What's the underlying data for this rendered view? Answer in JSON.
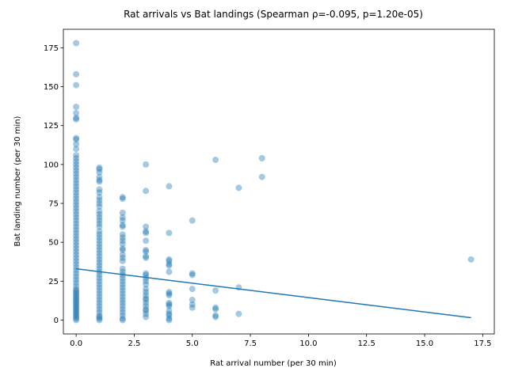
{
  "chart_data": {
    "type": "scatter",
    "title": "Rat arrivals vs Bat landings (Spearman ρ=-0.095, p=1.20e-05)",
    "x_label": "Rat arrival number (per 30 min)",
    "y_label": "Bat landing number (per 30 min)",
    "xlim": [
      -0.55,
      18.0
    ],
    "ylim": [
      -8.9,
      186.9
    ],
    "xticks": [
      {
        "value": 0,
        "label": "0.0"
      },
      2.5,
      {
        "value": 5,
        "label": "5.0"
      },
      7.5,
      {
        "value": 10,
        "label": "10.0"
      },
      12.5,
      {
        "value": 15,
        "label": "15.0"
      },
      17.5
    ],
    "yticks": [
      0,
      25,
      50,
      75,
      100,
      125,
      150,
      175
    ],
    "series": [
      {
        "kind": "scatter",
        "color": "#1f77b4",
        "opacity": 0.4,
        "x": [
          0,
          0,
          0,
          0,
          0,
          0,
          0,
          0,
          0,
          0,
          0,
          0,
          0,
          0,
          0,
          0,
          0,
          0,
          0,
          0,
          0,
          0,
          0,
          0,
          0,
          0,
          0,
          0,
          0,
          0,
          0,
          0,
          0,
          0,
          0,
          0,
          0,
          0,
          0,
          0,
          0,
          0,
          0,
          0,
          0,
          0,
          0,
          0,
          0,
          0,
          0,
          0,
          0,
          0,
          0,
          0,
          0,
          0,
          0,
          0,
          0,
          0,
          0,
          0,
          0,
          0,
          0,
          0,
          0,
          0,
          0,
          0,
          0,
          0,
          0,
          1,
          1,
          1,
          1,
          1,
          1,
          1,
          1,
          1,
          1,
          1,
          1,
          1,
          1,
          1,
          1,
          1,
          1,
          1,
          1,
          1,
          1,
          1,
          1,
          1,
          1,
          1,
          1,
          1,
          1,
          1,
          1,
          1,
          1,
          1,
          1,
          1,
          1,
          1,
          1,
          1,
          1,
          1,
          1,
          1,
          1,
          1,
          1,
          1,
          2,
          2,
          2,
          2,
          2,
          2,
          2,
          2,
          2,
          2,
          2,
          2,
          2,
          2,
          2,
          2,
          2,
          2,
          2,
          2,
          2,
          2,
          2,
          2,
          2,
          2,
          2,
          2,
          2,
          2,
          2,
          2,
          2,
          2,
          3,
          3,
          3,
          3,
          3,
          3,
          3,
          3,
          3,
          3,
          3,
          3,
          3,
          3,
          3,
          3,
          3,
          3,
          3,
          3,
          3,
          3,
          3,
          3,
          3,
          3,
          4,
          4,
          4,
          4,
          4,
          4,
          4,
          4,
          4,
          4,
          4,
          4,
          4,
          4,
          4,
          4,
          4,
          4,
          5,
          5,
          5,
          5,
          5,
          5,
          5,
          6,
          6,
          6,
          6,
          6,
          6,
          7,
          7,
          7,
          8,
          8,
          17
        ],
        "values": [
          0,
          1,
          2,
          3,
          4,
          5,
          6,
          7,
          8,
          9,
          10,
          11,
          12,
          13,
          14,
          15,
          16,
          17,
          18,
          19,
          20,
          22,
          24,
          26,
          28,
          30,
          32,
          34,
          36,
          38,
          40,
          42,
          44,
          46,
          48,
          50,
          52,
          54,
          56,
          58,
          60,
          62,
          64,
          66,
          68,
          70,
          72,
          74,
          76,
          78,
          80,
          82,
          84,
          86,
          88,
          90,
          92,
          94,
          96,
          98,
          100,
          102,
          104,
          106,
          110,
          113,
          116,
          117,
          129,
          130,
          133,
          137,
          151,
          158,
          178,
          0,
          1,
          2,
          3,
          5,
          7,
          9,
          11,
          13,
          15,
          17,
          19,
          21,
          23,
          25,
          27,
          29,
          31,
          33,
          35,
          37,
          39,
          41,
          43,
          45,
          47,
          49,
          51,
          53,
          55,
          57,
          60,
          62,
          64,
          66,
          68,
          70,
          73,
          75,
          77,
          79,
          82,
          84,
          89,
          90,
          92,
          95,
          97,
          98,
          0,
          1,
          3,
          5,
          7,
          9,
          11,
          13,
          15,
          17,
          19,
          21,
          23,
          25,
          27,
          29,
          31,
          33,
          38,
          40,
          42,
          45,
          46,
          49,
          51,
          53,
          55,
          60,
          61,
          64,
          66,
          69,
          78,
          79,
          2,
          4,
          6,
          7,
          9,
          11,
          13,
          14,
          16,
          18,
          20,
          23,
          25,
          27,
          29,
          30,
          40,
          41,
          44,
          45,
          51,
          56,
          57,
          60,
          83,
          100,
          0,
          1,
          3,
          4,
          6,
          9,
          10,
          11,
          16,
          17,
          18,
          31,
          35,
          36,
          38,
          39,
          56,
          86,
          8,
          10,
          13,
          20,
          29,
          30,
          64,
          2,
          3,
          7,
          8,
          19,
          103,
          4,
          21,
          85,
          92,
          104,
          39
        ]
      },
      {
        "kind": "line",
        "color": "#1f77b4",
        "x": [
          0,
          17
        ],
        "values": [
          33,
          1.5
        ]
      }
    ]
  }
}
